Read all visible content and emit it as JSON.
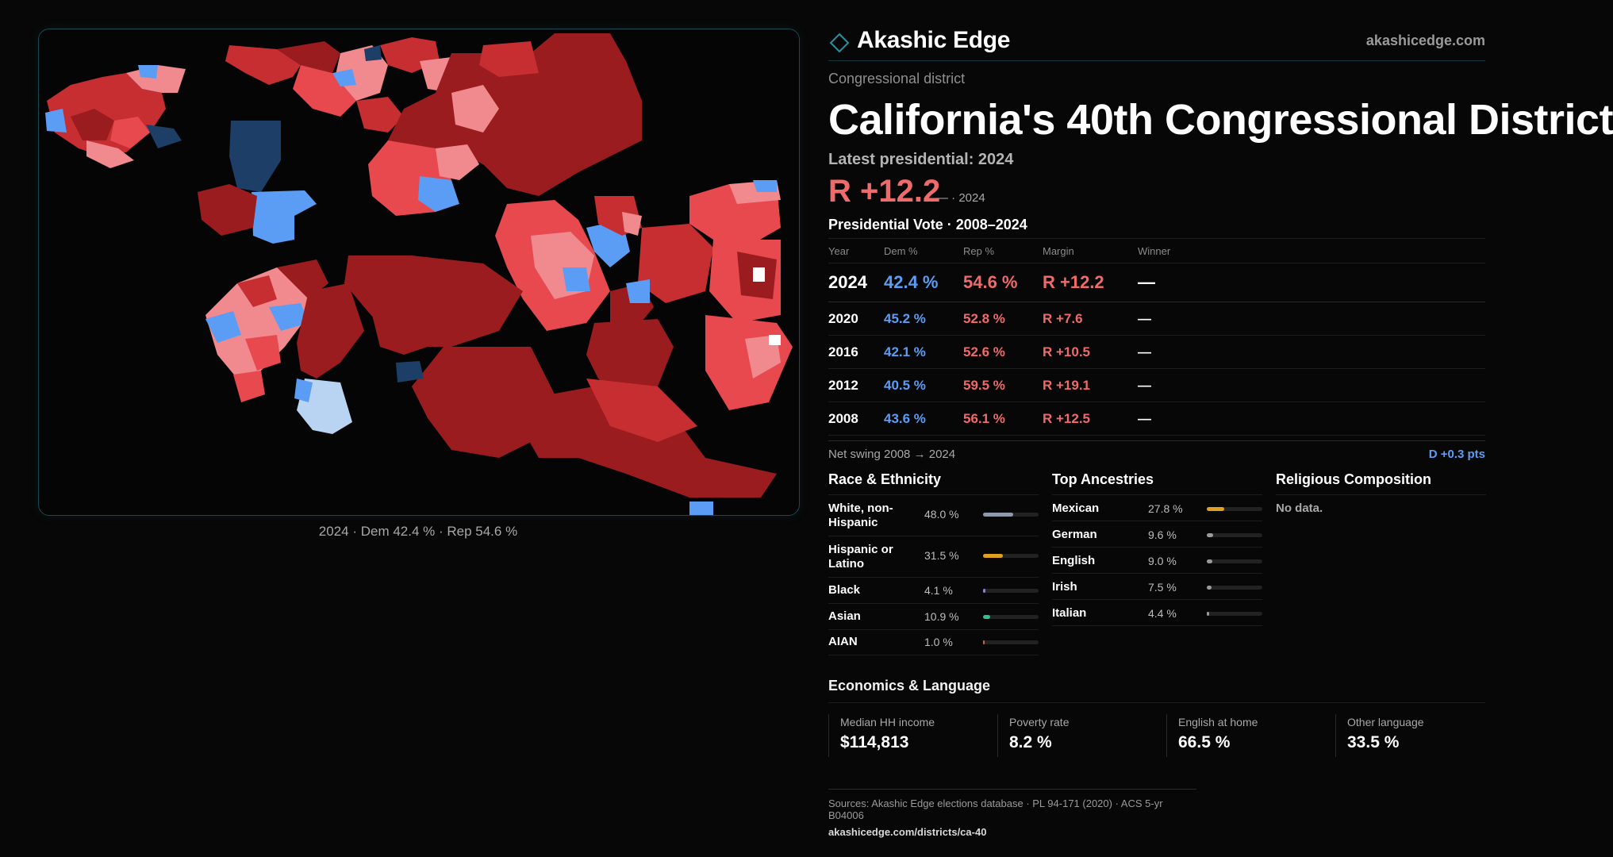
{
  "brand": {
    "name": "Akashic Edge",
    "url": "akashicedge.com"
  },
  "kind": "Congressional district",
  "title": "California's 40th Congressional District",
  "latest": {
    "label": "Latest presidential: 2024",
    "margin": "R +12.2",
    "sub": "— · 2024"
  },
  "map": {
    "caption": "2024 · Dem 42.4 % · Rep 54.6 %"
  },
  "presidential": {
    "heading": "Presidential Vote · 2008–2024",
    "columns": [
      "Year",
      "Dem %",
      "Rep %",
      "Margin",
      "Winner"
    ],
    "rows": [
      {
        "year": "2024",
        "dem": "42.4 %",
        "rep": "54.6 %",
        "margin": "R +12.2",
        "winner": "—"
      },
      {
        "year": "2020",
        "dem": "45.2 %",
        "rep": "52.8 %",
        "margin": "R +7.6",
        "winner": "—"
      },
      {
        "year": "2016",
        "dem": "42.1 %",
        "rep": "52.6 %",
        "margin": "R +10.5",
        "winner": "—"
      },
      {
        "year": "2012",
        "dem": "40.5 %",
        "rep": "59.5 %",
        "margin": "R +19.1",
        "winner": "—"
      },
      {
        "year": "2008",
        "dem": "43.6 %",
        "rep": "56.1 %",
        "margin": "R +12.5",
        "winner": "—"
      }
    ],
    "swing_label": "Net swing 2008 → 2024",
    "swing_value": "D +0.3 pts"
  },
  "race": {
    "heading": "Race & Ethnicity",
    "rows": [
      {
        "label": "White, non-Hispanic",
        "value": "48.0 %",
        "pct": 48.0,
        "color": "#8e9aab"
      },
      {
        "label": "Hispanic or Latino",
        "value": "31.5 %",
        "pct": 31.5,
        "color": "#e0a020"
      },
      {
        "label": "Black",
        "value": "4.1 %",
        "pct": 4.1,
        "color": "#8a7fd6"
      },
      {
        "label": "Asian",
        "value": "10.9 %",
        "pct": 10.9,
        "color": "#2fbf8a"
      },
      {
        "label": "AIAN",
        "value": "1.0 %",
        "pct": 1.0,
        "color": "#c96a3a"
      }
    ]
  },
  "ancestry": {
    "heading": "Top Ancestries",
    "rows": [
      {
        "label": "Mexican",
        "value": "27.8 %",
        "pct": 27.8,
        "color": "#e0a020"
      },
      {
        "label": "German",
        "value": "9.6 %",
        "pct": 9.6,
        "color": "#9a9a9a"
      },
      {
        "label": "English",
        "value": "9.0 %",
        "pct": 9.0,
        "color": "#9a9a9a"
      },
      {
        "label": "Irish",
        "value": "7.5 %",
        "pct": 7.5,
        "color": "#9a9a9a"
      },
      {
        "label": "Italian",
        "value": "4.4 %",
        "pct": 4.4,
        "color": "#9a9a9a"
      }
    ]
  },
  "religion": {
    "heading": "Religious Composition",
    "note": "No data."
  },
  "economics": {
    "heading": "Economics & Language",
    "cards": [
      {
        "label": "Median HH income",
        "value": "$114,813"
      },
      {
        "label": "Poverty rate",
        "value": "8.2 %"
      },
      {
        "label": "English at home",
        "value": "66.5 %"
      },
      {
        "label": "Other language",
        "value": "33.5 %"
      }
    ]
  },
  "sources": {
    "line": "Sources: Akashic Edge elections database · PL 94-171 (2020) · ACS 5-yr B04006",
    "url": "akashicedge.com/districts/ca-40"
  },
  "colors": {
    "dem": "#5b9df5",
    "rep": "#ef6b6b",
    "rep_dark": "#9b1c1f",
    "rep_mid": "#c62e32",
    "rep_light": "#f08a8e",
    "dem_dark": "#1d3e66",
    "accent": "#1c4852"
  }
}
